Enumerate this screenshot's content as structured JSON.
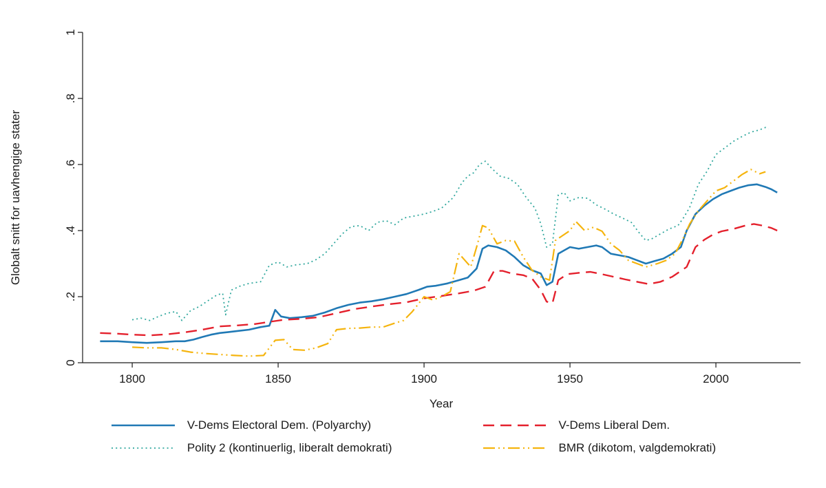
{
  "chart_data": {
    "type": "line",
    "title": "",
    "xlabel": "Year",
    "ylabel": "Globalt snitt for uavhengige stater",
    "xlim": [
      1783,
      2029
    ],
    "ylim": [
      0,
      1
    ],
    "grid": false,
    "legend_position": "bottom",
    "xticks": [
      1800,
      1850,
      1900,
      1950,
      2000
    ],
    "xtick_labels": [
      "1800",
      "1850",
      "1900",
      "1950",
      "2000"
    ],
    "yticks": [
      0,
      0.2,
      0.4,
      0.6,
      0.8,
      1
    ],
    "ytick_labels": [
      "0",
      ".2",
      ".4",
      ".6",
      ".8",
      "1"
    ],
    "axis_color": "#1a1a1a",
    "series": [
      {
        "name": "V-Dems Electoral Dem. (Polyarchy)",
        "color": "#2079b5",
        "style": "solid",
        "points": [
          [
            1789,
            0.065
          ],
          [
            1795,
            0.065
          ],
          [
            1800,
            0.062
          ],
          [
            1805,
            0.06
          ],
          [
            1810,
            0.062
          ],
          [
            1815,
            0.065
          ],
          [
            1818,
            0.065
          ],
          [
            1821,
            0.07
          ],
          [
            1824,
            0.078
          ],
          [
            1827,
            0.085
          ],
          [
            1830,
            0.09
          ],
          [
            1833,
            0.093
          ],
          [
            1836,
            0.096
          ],
          [
            1840,
            0.1
          ],
          [
            1844,
            0.108
          ],
          [
            1847,
            0.112
          ],
          [
            1849,
            0.16
          ],
          [
            1851,
            0.14
          ],
          [
            1854,
            0.135
          ],
          [
            1858,
            0.138
          ],
          [
            1862,
            0.142
          ],
          [
            1866,
            0.152
          ],
          [
            1870,
            0.165
          ],
          [
            1874,
            0.175
          ],
          [
            1878,
            0.182
          ],
          [
            1882,
            0.186
          ],
          [
            1886,
            0.192
          ],
          [
            1890,
            0.2
          ],
          [
            1894,
            0.208
          ],
          [
            1898,
            0.22
          ],
          [
            1901,
            0.23
          ],
          [
            1904,
            0.233
          ],
          [
            1908,
            0.24
          ],
          [
            1912,
            0.25
          ],
          [
            1915,
            0.258
          ],
          [
            1918,
            0.285
          ],
          [
            1920,
            0.345
          ],
          [
            1922,
            0.355
          ],
          [
            1925,
            0.35
          ],
          [
            1928,
            0.34
          ],
          [
            1931,
            0.32
          ],
          [
            1934,
            0.295
          ],
          [
            1937,
            0.28
          ],
          [
            1940,
            0.27
          ],
          [
            1942,
            0.235
          ],
          [
            1944,
            0.245
          ],
          [
            1946,
            0.33
          ],
          [
            1948,
            0.34
          ],
          [
            1950,
            0.35
          ],
          [
            1953,
            0.345
          ],
          [
            1956,
            0.35
          ],
          [
            1959,
            0.355
          ],
          [
            1961,
            0.35
          ],
          [
            1964,
            0.33
          ],
          [
            1967,
            0.325
          ],
          [
            1970,
            0.32
          ],
          [
            1973,
            0.31
          ],
          [
            1976,
            0.3
          ],
          [
            1979,
            0.308
          ],
          [
            1982,
            0.315
          ],
          [
            1985,
            0.33
          ],
          [
            1988,
            0.35
          ],
          [
            1990,
            0.4
          ],
          [
            1993,
            0.45
          ],
          [
            1996,
            0.475
          ],
          [
            1999,
            0.495
          ],
          [
            2002,
            0.51
          ],
          [
            2005,
            0.52
          ],
          [
            2008,
            0.53
          ],
          [
            2011,
            0.537
          ],
          [
            2014,
            0.54
          ],
          [
            2017,
            0.532
          ],
          [
            2019,
            0.525
          ],
          [
            2021,
            0.515
          ]
        ]
      },
      {
        "name": "V-Dems Liberal Dem.",
        "color": "#e4202c",
        "style": "dashed",
        "points": [
          [
            1789,
            0.09
          ],
          [
            1795,
            0.088
          ],
          [
            1800,
            0.085
          ],
          [
            1806,
            0.083
          ],
          [
            1812,
            0.086
          ],
          [
            1818,
            0.092
          ],
          [
            1824,
            0.1
          ],
          [
            1830,
            0.11
          ],
          [
            1836,
            0.113
          ],
          [
            1842,
            0.117
          ],
          [
            1848,
            0.125
          ],
          [
            1852,
            0.13
          ],
          [
            1858,
            0.133
          ],
          [
            1864,
            0.138
          ],
          [
            1870,
            0.15
          ],
          [
            1876,
            0.162
          ],
          [
            1882,
            0.17
          ],
          [
            1888,
            0.177
          ],
          [
            1894,
            0.183
          ],
          [
            1900,
            0.195
          ],
          [
            1906,
            0.202
          ],
          [
            1912,
            0.21
          ],
          [
            1917,
            0.218
          ],
          [
            1921,
            0.23
          ],
          [
            1924,
            0.278
          ],
          [
            1927,
            0.278
          ],
          [
            1930,
            0.27
          ],
          [
            1934,
            0.265
          ],
          [
            1937,
            0.255
          ],
          [
            1940,
            0.22
          ],
          [
            1942,
            0.185
          ],
          [
            1944,
            0.18
          ],
          [
            1946,
            0.25
          ],
          [
            1949,
            0.268
          ],
          [
            1953,
            0.272
          ],
          [
            1957,
            0.275
          ],
          [
            1961,
            0.268
          ],
          [
            1965,
            0.26
          ],
          [
            1969,
            0.252
          ],
          [
            1973,
            0.245
          ],
          [
            1977,
            0.238
          ],
          [
            1981,
            0.245
          ],
          [
            1985,
            0.26
          ],
          [
            1988,
            0.278
          ],
          [
            1990,
            0.29
          ],
          [
            1993,
            0.35
          ],
          [
            1996,
            0.372
          ],
          [
            1999,
            0.388
          ],
          [
            2002,
            0.398
          ],
          [
            2006,
            0.405
          ],
          [
            2010,
            0.415
          ],
          [
            2013,
            0.42
          ],
          [
            2016,
            0.415
          ],
          [
            2019,
            0.408
          ],
          [
            2021,
            0.4
          ]
        ]
      },
      {
        "name": "Polity 2 (kontinuerlig, liberalt demokrati)",
        "color": "#2fa79d",
        "style": "dotted",
        "points": [
          [
            1800,
            0.13
          ],
          [
            1803,
            0.135
          ],
          [
            1806,
            0.128
          ],
          [
            1809,
            0.14
          ],
          [
            1812,
            0.15
          ],
          [
            1815,
            0.155
          ],
          [
            1817,
            0.128
          ],
          [
            1820,
            0.158
          ],
          [
            1823,
            0.17
          ],
          [
            1826,
            0.188
          ],
          [
            1829,
            0.205
          ],
          [
            1831,
            0.21
          ],
          [
            1832,
            0.145
          ],
          [
            1834,
            0.22
          ],
          [
            1837,
            0.232
          ],
          [
            1840,
            0.24
          ],
          [
            1844,
            0.245
          ],
          [
            1847,
            0.295
          ],
          [
            1850,
            0.305
          ],
          [
            1853,
            0.29
          ],
          [
            1856,
            0.296
          ],
          [
            1860,
            0.3
          ],
          [
            1863,
            0.312
          ],
          [
            1866,
            0.33
          ],
          [
            1869,
            0.36
          ],
          [
            1872,
            0.39
          ],
          [
            1875,
            0.412
          ],
          [
            1878,
            0.415
          ],
          [
            1881,
            0.4
          ],
          [
            1884,
            0.425
          ],
          [
            1887,
            0.43
          ],
          [
            1890,
            0.418
          ],
          [
            1893,
            0.438
          ],
          [
            1896,
            0.443
          ],
          [
            1900,
            0.45
          ],
          [
            1903,
            0.458
          ],
          [
            1906,
            0.468
          ],
          [
            1910,
            0.5
          ],
          [
            1913,
            0.545
          ],
          [
            1915,
            0.565
          ],
          [
            1917,
            0.575
          ],
          [
            1919,
            0.6
          ],
          [
            1921,
            0.61
          ],
          [
            1923,
            0.59
          ],
          [
            1926,
            0.565
          ],
          [
            1929,
            0.558
          ],
          [
            1932,
            0.54
          ],
          [
            1935,
            0.5
          ],
          [
            1938,
            0.468
          ],
          [
            1940,
            0.42
          ],
          [
            1942,
            0.35
          ],
          [
            1944,
            0.36
          ],
          [
            1946,
            0.508
          ],
          [
            1948,
            0.515
          ],
          [
            1950,
            0.49
          ],
          [
            1953,
            0.5
          ],
          [
            1956,
            0.498
          ],
          [
            1959,
            0.478
          ],
          [
            1962,
            0.465
          ],
          [
            1965,
            0.45
          ],
          [
            1968,
            0.438
          ],
          [
            1971,
            0.425
          ],
          [
            1974,
            0.39
          ],
          [
            1976,
            0.37
          ],
          [
            1978,
            0.375
          ],
          [
            1981,
            0.39
          ],
          [
            1984,
            0.405
          ],
          [
            1987,
            0.415
          ],
          [
            1989,
            0.44
          ],
          [
            1991,
            0.47
          ],
          [
            1994,
            0.54
          ],
          [
            1997,
            0.58
          ],
          [
            2000,
            0.63
          ],
          [
            2003,
            0.65
          ],
          [
            2006,
            0.67
          ],
          [
            2009,
            0.685
          ],
          [
            2012,
            0.698
          ],
          [
            2015,
            0.705
          ],
          [
            2017,
            0.712
          ],
          [
            2018,
            0.708
          ]
        ]
      },
      {
        "name": "BMR (dikotom, valgdemokrati)",
        "color": "#f5b40d",
        "style": "dash-dot-dot",
        "points": [
          [
            1800,
            0.047
          ],
          [
            1805,
            0.045
          ],
          [
            1810,
            0.045
          ],
          [
            1815,
            0.04
          ],
          [
            1820,
            0.032
          ],
          [
            1825,
            0.028
          ],
          [
            1830,
            0.025
          ],
          [
            1835,
            0.022
          ],
          [
            1840,
            0.02
          ],
          [
            1845,
            0.022
          ],
          [
            1849,
            0.068
          ],
          [
            1852,
            0.07
          ],
          [
            1855,
            0.04
          ],
          [
            1859,
            0.038
          ],
          [
            1863,
            0.045
          ],
          [
            1867,
            0.058
          ],
          [
            1870,
            0.1
          ],
          [
            1874,
            0.104
          ],
          [
            1878,
            0.105
          ],
          [
            1882,
            0.108
          ],
          [
            1886,
            0.108
          ],
          [
            1890,
            0.12
          ],
          [
            1893,
            0.128
          ],
          [
            1896,
            0.155
          ],
          [
            1900,
            0.2
          ],
          [
            1903,
            0.19
          ],
          [
            1906,
            0.2
          ],
          [
            1909,
            0.215
          ],
          [
            1912,
            0.33
          ],
          [
            1914,
            0.31
          ],
          [
            1916,
            0.29
          ],
          [
            1918,
            0.35
          ],
          [
            1920,
            0.415
          ],
          [
            1922,
            0.408
          ],
          [
            1925,
            0.36
          ],
          [
            1928,
            0.37
          ],
          [
            1931,
            0.368
          ],
          [
            1934,
            0.32
          ],
          [
            1937,
            0.28
          ],
          [
            1940,
            0.26
          ],
          [
            1943,
            0.25
          ],
          [
            1945,
            0.37
          ],
          [
            1947,
            0.382
          ],
          [
            1950,
            0.4
          ],
          [
            1952,
            0.428
          ],
          [
            1955,
            0.4
          ],
          [
            1958,
            0.41
          ],
          [
            1961,
            0.398
          ],
          [
            1964,
            0.36
          ],
          [
            1967,
            0.34
          ],
          [
            1970,
            0.31
          ],
          [
            1973,
            0.3
          ],
          [
            1976,
            0.29
          ],
          [
            1980,
            0.3
          ],
          [
            1983,
            0.31
          ],
          [
            1986,
            0.33
          ],
          [
            1989,
            0.38
          ],
          [
            1991,
            0.42
          ],
          [
            1994,
            0.46
          ],
          [
            1997,
            0.49
          ],
          [
            2000,
            0.52
          ],
          [
            2003,
            0.53
          ],
          [
            2006,
            0.55
          ],
          [
            2009,
            0.57
          ],
          [
            2012,
            0.585
          ],
          [
            2015,
            0.572
          ],
          [
            2017,
            0.578
          ]
        ]
      }
    ]
  }
}
